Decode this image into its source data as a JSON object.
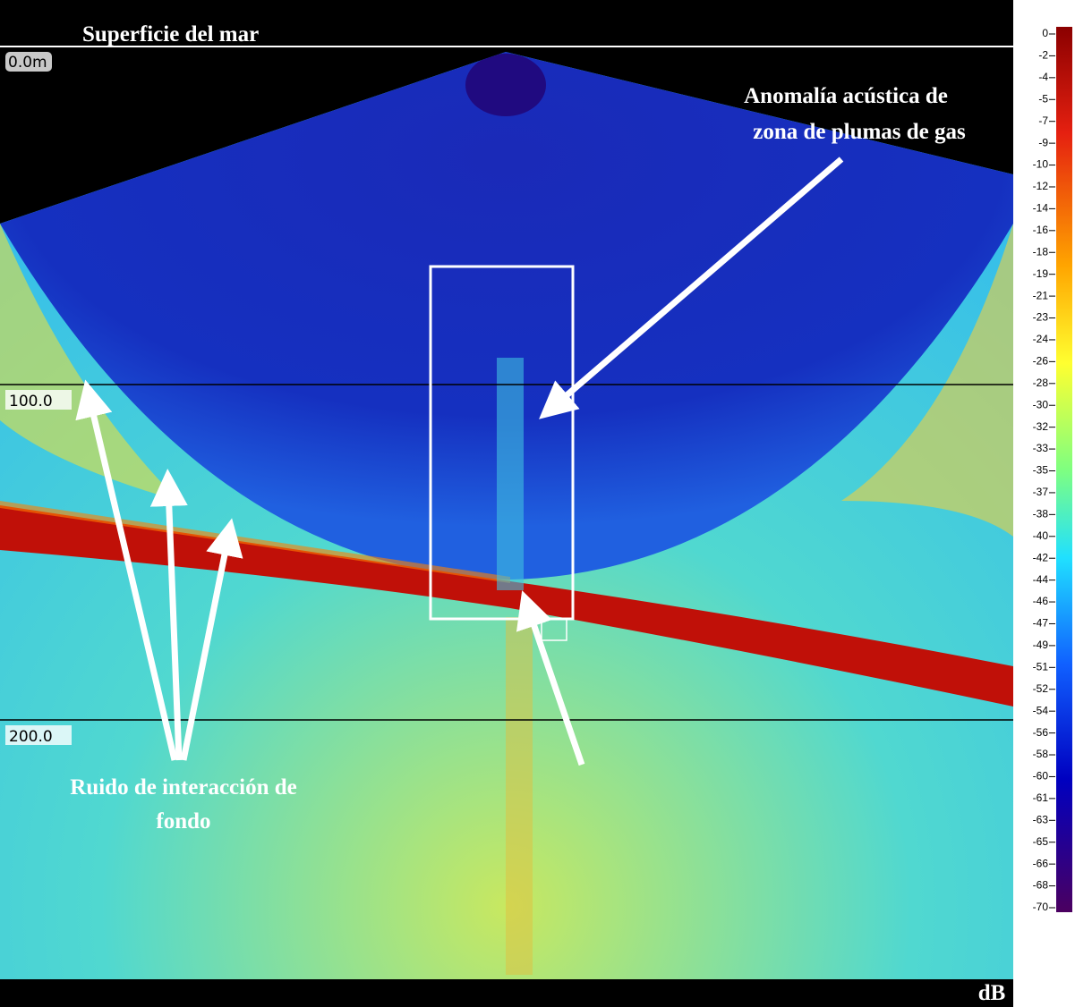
{
  "header": {
    "title": "Superficie del mar"
  },
  "depth_labels": [
    "0.0m",
    "100.0",
    "200.0"
  ],
  "annotations": {
    "gas_plume": [
      "Anomalía acústica de",
      "zona de plumas de gas"
    ],
    "bottom_noise": [
      "Ruido de interacción de",
      "fondo"
    ]
  },
  "colorbar": {
    "unit": "dB",
    "labels": [
      "0",
      "-2",
      "-4",
      "-5",
      "-7",
      "-9",
      "-10",
      "-12",
      "-14",
      "-16",
      "-18",
      "-19",
      "-21",
      "-23",
      "-24",
      "-26",
      "-28",
      "-30",
      "-32",
      "-33",
      "-35",
      "-37",
      "-38",
      "-40",
      "-42",
      "-44",
      "-46",
      "-47",
      "-49",
      "-51",
      "-52",
      "-54",
      "-56",
      "-58",
      "-60",
      "-61",
      "-63",
      "-65",
      "-66",
      "-68",
      "-70"
    ]
  }
}
